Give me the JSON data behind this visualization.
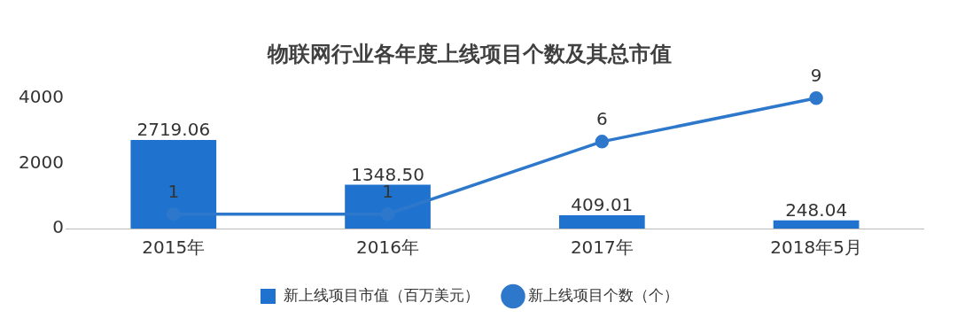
{
  "chart_data": {
    "type": "bar",
    "title": "物联网行业各年度上线项目个数及其总市值",
    "categories": [
      "2015年",
      "2016年",
      "2017年",
      "2018年5月"
    ],
    "series": [
      {
        "name": "新上线项目市值（百万美元）",
        "type": "bar",
        "color": "#1f73cf",
        "values": [
          2719.06,
          1348.5,
          409.01,
          248.04
        ],
        "value_labels": [
          "2719.06",
          "1348.50",
          "409.01",
          "248.04"
        ]
      },
      {
        "name": "新上线项目个数（个）",
        "type": "line",
        "axis": "y2",
        "color": "#2e78cc",
        "values": [
          1,
          1,
          6,
          9
        ],
        "value_labels": [
          "1",
          "1",
          "6",
          "9"
        ]
      }
    ],
    "ylim": [
      0,
      4000
    ],
    "yticks": [
      0,
      2000,
      4000
    ],
    "tick_labels": "xy",
    "grid": false,
    "legend": "bottom",
    "marker": "circle",
    "line_style": "solid"
  }
}
